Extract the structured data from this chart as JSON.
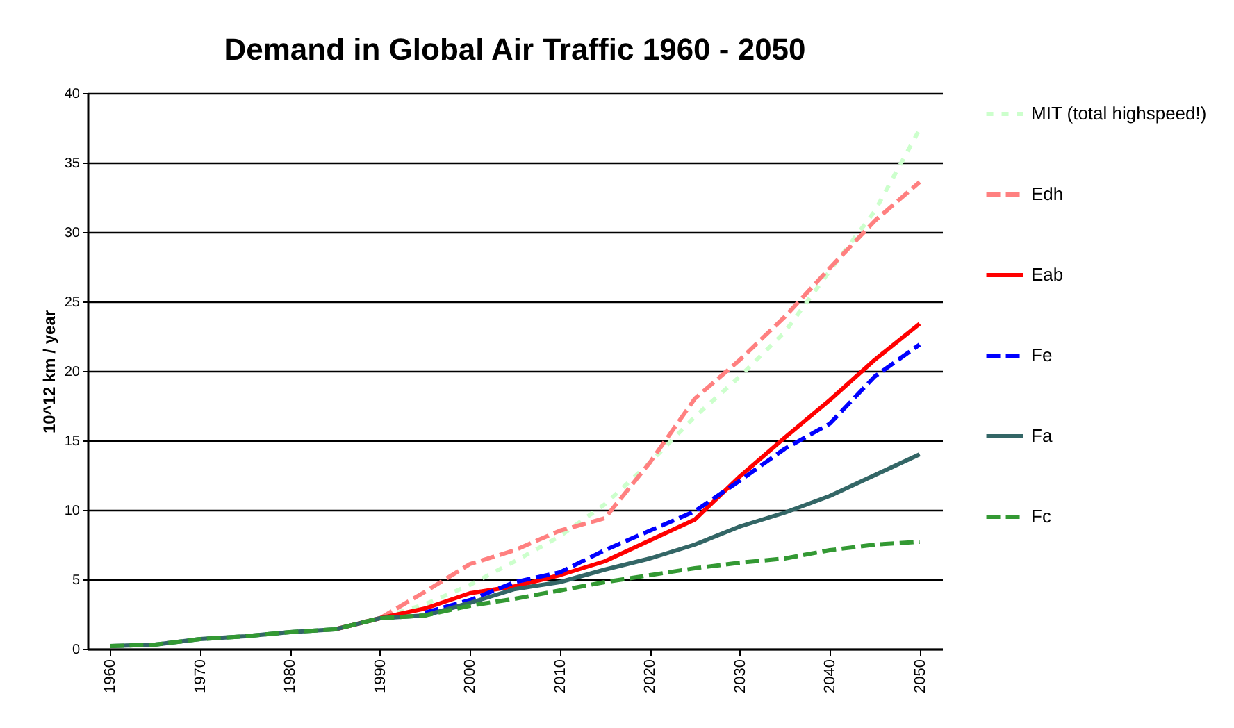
{
  "chart_data": {
    "type": "line",
    "title": "Demand in Global Air Traffic 1960 - 2050",
    "ylabel": "10^12 km / year",
    "x": [
      1960,
      1965,
      1970,
      1975,
      1980,
      1985,
      1990,
      1995,
      2000,
      2005,
      2010,
      2015,
      2020,
      2025,
      2030,
      2035,
      2040,
      2045,
      2050
    ],
    "xlim": [
      1957.5,
      2052.5
    ],
    "xticks": [
      1960,
      1970,
      1980,
      1990,
      2000,
      2010,
      2020,
      2030,
      2040,
      2050
    ],
    "ylim": [
      0,
      40
    ],
    "yticks": [
      0,
      5,
      10,
      15,
      20,
      25,
      30,
      35,
      40
    ],
    "grid": "y",
    "legend": "right",
    "series": [
      {
        "name": "MIT (total highspeed!)",
        "color": "#ccffcc",
        "line_style": "dotted",
        "values": [
          0.2,
          0.3,
          0.7,
          0.9,
          1.2,
          1.4,
          2.2,
          3.2,
          4.6,
          6.3,
          8.1,
          10.4,
          13.4,
          16.7,
          19.6,
          22.8,
          27.2,
          31.5,
          37.4
        ]
      },
      {
        "name": "Edh",
        "color": "#ff8080",
        "line_style": "dashed",
        "values": [
          null,
          null,
          null,
          null,
          null,
          null,
          2.2,
          4.1,
          6.1,
          7.1,
          8.5,
          9.4,
          13.4,
          18.0,
          20.8,
          23.9,
          27.4,
          30.8,
          33.6
        ]
      },
      {
        "name": "Eab",
        "color": "#ff0000",
        "line_style": "solid",
        "values": [
          null,
          null,
          null,
          null,
          null,
          1.4,
          2.2,
          2.9,
          4.0,
          4.5,
          5.3,
          6.3,
          7.8,
          9.3,
          12.4,
          15.2,
          17.9,
          20.8,
          23.4
        ]
      },
      {
        "name": "Fe",
        "color": "#0000ff",
        "line_style": "dashed",
        "values": [
          null,
          null,
          null,
          null,
          null,
          null,
          null,
          2.6,
          3.5,
          4.8,
          5.5,
          7.1,
          8.5,
          9.9,
          12.1,
          14.4,
          16.2,
          19.6,
          21.9
        ]
      },
      {
        "name": "Fa",
        "color": "#336666",
        "line_style": "solid",
        "values": [
          0.2,
          0.3,
          0.7,
          0.9,
          1.2,
          1.4,
          2.2,
          2.4,
          3.3,
          4.3,
          4.8,
          5.7,
          6.5,
          7.5,
          8.8,
          9.8,
          11.0,
          12.5,
          14.0
        ]
      },
      {
        "name": "Fc",
        "color": "#339933",
        "line_style": "dashed",
        "values": [
          0.2,
          0.3,
          0.7,
          0.9,
          1.2,
          1.4,
          2.2,
          2.4,
          3.1,
          3.6,
          4.2,
          4.8,
          5.3,
          5.8,
          6.2,
          6.5,
          7.1,
          7.5,
          7.7
        ]
      }
    ]
  }
}
